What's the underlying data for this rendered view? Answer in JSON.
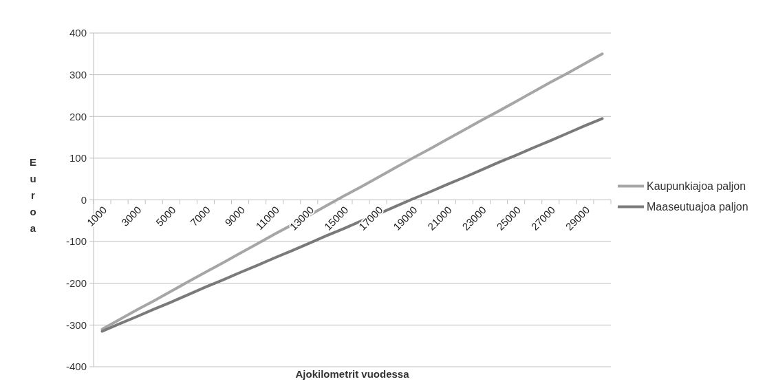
{
  "chart_data": {
    "type": "line",
    "xlabel": "Ajokilometrit vuodessa",
    "ylabel": "Euroa",
    "categories": [
      "1000",
      null,
      "3000",
      null,
      "5000",
      null,
      "7000",
      null,
      "9000",
      null,
      "11000",
      null,
      "13000",
      null,
      "15000",
      null,
      "17000",
      null,
      "19000",
      null,
      "21000",
      null,
      "23000",
      null,
      "25000",
      null,
      "27000",
      null,
      "29000",
      null
    ],
    "series": [
      {
        "name": "Kaupunkiajoa paljon",
        "color": "#a6a6a6",
        "values": [
          -310,
          -287,
          -264,
          -242,
          -219,
          -196,
          -173,
          -151,
          -128,
          -105,
          -82,
          -60,
          -37,
          -14,
          9,
          31,
          54,
          77,
          100,
          122,
          145,
          168,
          191,
          213,
          236,
          259,
          282,
          304,
          327,
          350
        ]
      },
      {
        "name": "Maaseutuajoa paljon",
        "color": "#7a7a7a",
        "values": [
          -315,
          -297,
          -280,
          -262,
          -245,
          -227,
          -209,
          -192,
          -174,
          -157,
          -139,
          -122,
          -104,
          -86,
          -69,
          -51,
          -34,
          -16,
          2,
          19,
          37,
          54,
          72,
          90,
          107,
          125,
          142,
          160,
          178,
          195
        ]
      }
    ],
    "ylim": [
      -400,
      400
    ],
    "yticks": [
      -400,
      -300,
      -200,
      -100,
      0,
      100,
      200,
      300,
      400
    ],
    "grid": "y",
    "legend": "right",
    "marker": "none",
    "line_style": "solid"
  }
}
